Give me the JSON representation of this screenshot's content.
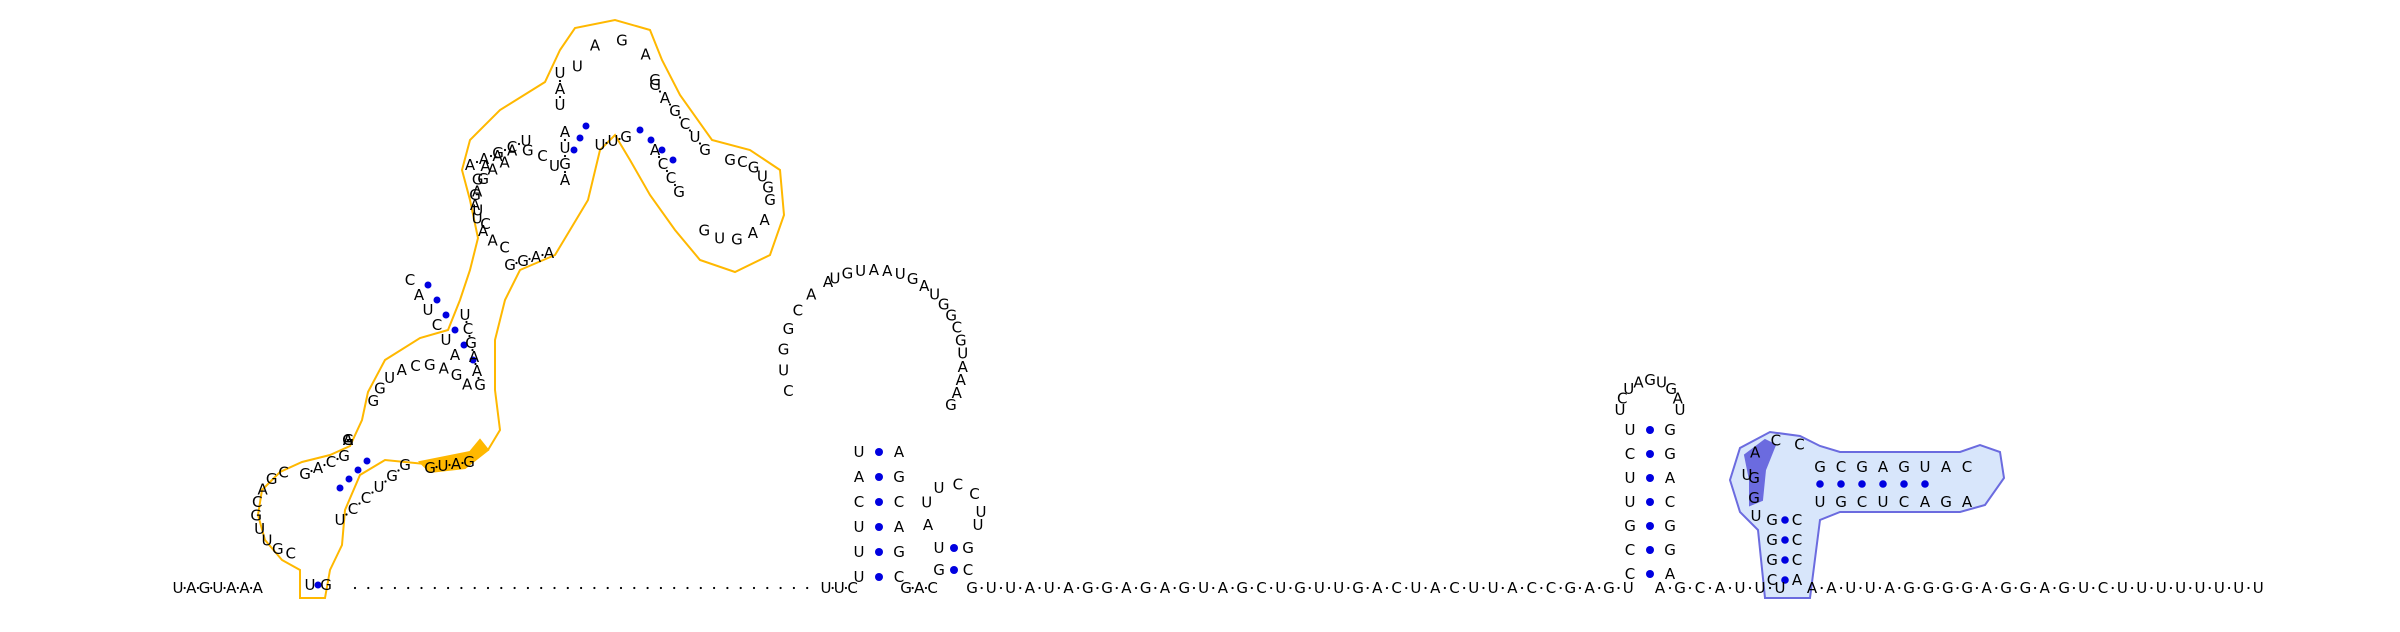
{
  "structure": {
    "sequence_segments": [
      {
        "name": "leader",
        "text": "UAGUAAA"
      },
      {
        "name": "hairpin-1-5prime",
        "text": "U"
      },
      {
        "name": "hairpin-1-loop",
        "text": "GCACGUUCG"
      },
      {
        "name": "hairpin-1-3prime",
        "text": "G"
      },
      {
        "name": "gap",
        "text": "........................."
      },
      {
        "name": "hairpin-2-stem",
        "text": "UUCGACGUUAUAGGAGAGUAGCUGUUGACUACUUACCGAGU"
      },
      {
        "name": "hairpin-3-stem",
        "text": "AGCAUUU"
      },
      {
        "name": "hairpin-4-stem",
        "text": "AAUUAGGGGAGGAGUCUUUUUUUU"
      }
    ],
    "annotations": [
      {
        "name": "highlight-region-orange",
        "color": "#ffb800"
      },
      {
        "name": "highlight-region-blue",
        "color": "#6b6bdf"
      }
    ],
    "base_pair_color": "#0000e0",
    "loops": {
      "big_loop_top": "UGUAAUGAUGGCGUAAAG",
      "big_loop_left": "CUGGCAA",
      "hairpin_loop_right": "UCUAGUGAU",
      "orange_top_loop": "UAGAG",
      "orange_top_right_loop": "GCGUGG",
      "orange_right_loop": "AAGUG"
    }
  }
}
